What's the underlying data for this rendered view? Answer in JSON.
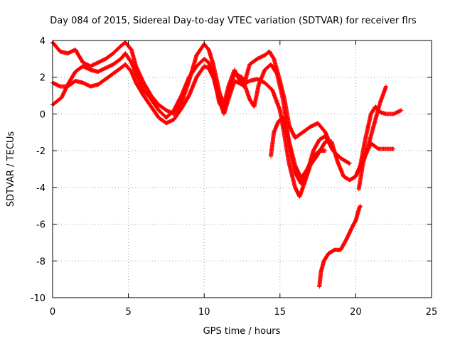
{
  "chart_data": {
    "type": "scatter",
    "title": "Day 084 of 2015, Sidereal Day-to-day VTEC variation (SDTVAR) for receiver flrs",
    "xlabel": "GPS time / hours",
    "ylabel": "SDTVAR / TECUs",
    "xlim": [
      0,
      25
    ],
    "ylim": [
      -10,
      4
    ],
    "xticks": [
      "0",
      "5",
      "10",
      "15",
      "20",
      "25"
    ],
    "yticks": [
      "-10",
      "-8",
      "-6",
      "-4",
      "-2",
      "0",
      "2",
      "4"
    ],
    "grid": true,
    "marker": "+",
    "color": "#ff0000",
    "series": [
      {
        "points": [
          [
            0.0,
            3.9
          ],
          [
            0.5,
            3.4
          ],
          [
            1.0,
            3.3
          ],
          [
            1.5,
            3.5
          ],
          [
            2.0,
            2.8
          ],
          [
            2.5,
            2.6
          ],
          [
            3.0,
            2.8
          ],
          [
            3.5,
            3.0
          ],
          [
            4.0,
            3.3
          ],
          [
            4.5,
            3.7
          ],
          [
            4.8,
            3.9
          ],
          [
            5.2,
            3.5
          ],
          [
            5.5,
            2.6
          ],
          [
            6.0,
            1.7
          ],
          [
            6.5,
            1.0
          ],
          [
            7.0,
            0.5
          ],
          [
            7.5,
            0.2
          ],
          [
            8.0,
            0.0
          ],
          [
            8.5,
            0.6
          ],
          [
            9.0,
            1.8
          ],
          [
            9.5,
            3.2
          ],
          [
            10.0,
            3.8
          ],
          [
            10.3,
            3.5
          ],
          [
            10.6,
            2.7
          ],
          [
            11.0,
            1.2
          ],
          [
            11.3,
            0.5
          ],
          [
            11.6,
            1.5
          ],
          [
            12.0,
            2.4
          ],
          [
            12.3,
            1.9
          ],
          [
            12.6,
            1.5
          ],
          [
            13.0,
            2.7
          ],
          [
            13.5,
            3.0
          ],
          [
            14.0,
            3.2
          ],
          [
            14.3,
            3.4
          ],
          [
            14.6,
            3.0
          ],
          [
            15.0,
            1.8
          ],
          [
            15.3,
            0.8
          ],
          [
            15.6,
            -0.6
          ],
          [
            16.0,
            -1.3
          ],
          [
            16.5,
            -1.0
          ],
          [
            17.0,
            -0.7
          ],
          [
            17.5,
            -0.5
          ],
          [
            18.0,
            -1.0
          ],
          [
            18.5,
            -2.0
          ],
          [
            19.0,
            -2.4
          ],
          [
            19.6,
            -2.7
          ]
        ]
      },
      {
        "points": [
          [
            0.0,
            1.7
          ],
          [
            0.5,
            1.5
          ],
          [
            1.0,
            1.5
          ],
          [
            1.5,
            1.8
          ],
          [
            2.0,
            1.7
          ],
          [
            2.5,
            1.5
          ],
          [
            3.0,
            1.6
          ],
          [
            3.5,
            1.9
          ],
          [
            4.0,
            2.2
          ],
          [
            4.5,
            2.5
          ],
          [
            4.8,
            2.7
          ],
          [
            5.2,
            2.3
          ],
          [
            5.5,
            1.7
          ],
          [
            6.0,
            1.0
          ],
          [
            6.5,
            0.4
          ],
          [
            7.0,
            -0.2
          ],
          [
            7.5,
            -0.5
          ],
          [
            8.0,
            -0.3
          ],
          [
            8.5,
            0.3
          ],
          [
            9.0,
            1.0
          ],
          [
            9.5,
            2.0
          ],
          [
            10.0,
            2.6
          ],
          [
            10.3,
            2.5
          ],
          [
            10.6,
            2.0
          ],
          [
            11.0,
            0.8
          ],
          [
            11.3,
            0.0
          ],
          [
            11.6,
            0.8
          ],
          [
            12.0,
            1.8
          ],
          [
            12.5,
            1.6
          ],
          [
            13.0,
            1.8
          ],
          [
            13.5,
            1.9
          ],
          [
            14.0,
            1.7
          ],
          [
            14.5,
            1.3
          ],
          [
            15.0,
            0.2
          ],
          [
            15.3,
            -1.2
          ],
          [
            15.6,
            -2.7
          ],
          [
            16.0,
            -4.0
          ],
          [
            16.3,
            -4.5
          ],
          [
            16.6,
            -3.8
          ],
          [
            17.0,
            -2.8
          ],
          [
            17.5,
            -2.2
          ],
          [
            18.0,
            -1.5
          ],
          [
            18.4,
            -1.5
          ],
          [
            18.8,
            -2.6
          ],
          [
            19.2,
            -3.4
          ],
          [
            19.6,
            -3.6
          ],
          [
            20.0,
            -3.4
          ],
          [
            20.3,
            -2.8
          ],
          [
            20.6,
            -1.5
          ],
          [
            21.0,
            0.0
          ],
          [
            21.3,
            0.4
          ],
          [
            21.6,
            0.1
          ],
          [
            22.0,
            0.0
          ],
          [
            22.5,
            0.0
          ],
          [
            23.0,
            0.2
          ]
        ]
      },
      {
        "points": [
          [
            0.0,
            0.5
          ],
          [
            0.3,
            0.7
          ],
          [
            0.6,
            0.9
          ],
          [
            1.0,
            1.6
          ],
          [
            1.5,
            2.3
          ],
          [
            2.0,
            2.6
          ],
          [
            2.5,
            2.4
          ],
          [
            3.0,
            2.3
          ],
          [
            3.5,
            2.5
          ],
          [
            4.0,
            2.7
          ],
          [
            4.5,
            3.0
          ],
          [
            4.8,
            3.3
          ],
          [
            5.2,
            2.8
          ],
          [
            5.6,
            2.0
          ],
          [
            6.0,
            1.3
          ],
          [
            6.5,
            0.8
          ],
          [
            7.0,
            0.2
          ],
          [
            7.5,
            -0.2
          ],
          [
            8.0,
            0.2
          ],
          [
            8.5,
            1.0
          ],
          [
            9.0,
            2.0
          ],
          [
            9.5,
            2.6
          ],
          [
            10.0,
            3.0
          ],
          [
            10.3,
            2.8
          ],
          [
            10.6,
            2.2
          ],
          [
            11.0,
            0.6
          ],
          [
            11.3,
            0.2
          ],
          [
            11.6,
            1.2
          ],
          [
            12.0,
            2.2
          ],
          [
            12.5,
            2.0
          ],
          [
            13.0,
            0.8
          ],
          [
            13.3,
            0.4
          ],
          [
            13.6,
            1.6
          ],
          [
            14.0,
            2.4
          ],
          [
            14.4,
            2.7
          ],
          [
            14.8,
            2.2
          ],
          [
            15.2,
            0.8
          ],
          [
            15.6,
            -1.6
          ],
          [
            16.0,
            -3.2
          ],
          [
            16.4,
            -3.8
          ],
          [
            16.8,
            -3.2
          ],
          [
            17.2,
            -2.0
          ],
          [
            17.6,
            -1.4
          ],
          [
            18.0,
            -1.2
          ],
          [
            18.5,
            -2.0
          ]
        ]
      },
      {
        "points": [
          [
            14.4,
            -2.3
          ],
          [
            14.6,
            -1.0
          ],
          [
            14.9,
            -0.4
          ],
          [
            15.2,
            -0.2
          ],
          [
            15.6,
            -1.5
          ],
          [
            16.0,
            -2.8
          ],
          [
            16.4,
            -3.5
          ],
          [
            16.8,
            -3.0
          ],
          [
            17.2,
            -2.3
          ],
          [
            17.6,
            -2.0
          ],
          [
            18.0,
            -2.0
          ]
        ]
      },
      {
        "points": [
          [
            20.2,
            -4.1
          ],
          [
            20.5,
            -2.6
          ],
          [
            20.8,
            -1.8
          ],
          [
            21.2,
            -0.6
          ],
          [
            21.6,
            0.6
          ],
          [
            22.0,
            1.5
          ]
        ]
      },
      {
        "points": [
          [
            20.0,
            -3.4
          ],
          [
            20.5,
            -2.5
          ],
          [
            21.0,
            -1.6
          ],
          [
            21.5,
            -1.9
          ],
          [
            22.0,
            -1.9
          ],
          [
            22.5,
            -1.9
          ]
        ]
      },
      {
        "points": [
          [
            17.6,
            -9.4
          ],
          [
            17.7,
            -8.6
          ],
          [
            17.9,
            -8.0
          ],
          [
            18.2,
            -7.6
          ],
          [
            18.6,
            -7.4
          ],
          [
            19.0,
            -7.4
          ],
          [
            19.4,
            -6.8
          ],
          [
            19.8,
            -6.1
          ],
          [
            20.0,
            -5.8
          ],
          [
            20.2,
            -5.2
          ],
          [
            20.3,
            -5.0
          ]
        ]
      }
    ]
  }
}
